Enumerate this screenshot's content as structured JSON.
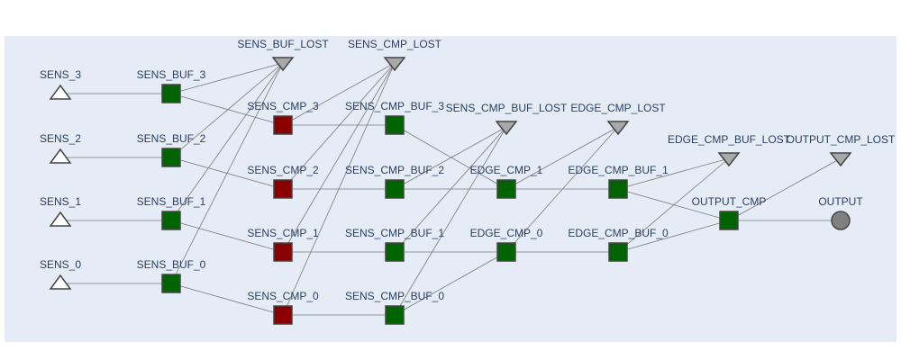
{
  "colors": {
    "plot_bg": "#e5ecf6",
    "edge": "#7a7a7a",
    "source": "#ffffff",
    "buffer": "#006400",
    "compute": "#8b0000",
    "lost": "#a9a9a9",
    "output": "#808080",
    "outline": "#444444",
    "label": "#2a3f5f"
  },
  "nodes": [
    {
      "id": "SENS_3",
      "label": "SENS_3",
      "kind": "source"
    },
    {
      "id": "SENS_2",
      "label": "SENS_2",
      "kind": "source"
    },
    {
      "id": "SENS_1",
      "label": "SENS_1",
      "kind": "source"
    },
    {
      "id": "SENS_0",
      "label": "SENS_0",
      "kind": "source"
    },
    {
      "id": "SENS_BUF_3",
      "label": "SENS_BUF_3",
      "kind": "buffer"
    },
    {
      "id": "SENS_BUF_2",
      "label": "SENS_BUF_2",
      "kind": "buffer"
    },
    {
      "id": "SENS_BUF_1",
      "label": "SENS_BUF_1",
      "kind": "buffer"
    },
    {
      "id": "SENS_BUF_0",
      "label": "SENS_BUF_0",
      "kind": "buffer"
    },
    {
      "id": "SENS_BUF_LOST",
      "label": "SENS_BUF_LOST",
      "kind": "lost"
    },
    {
      "id": "SENS_CMP_LOST",
      "label": "SENS_CMP_LOST",
      "kind": "lost"
    },
    {
      "id": "SENS_CMP_3",
      "label": "SENS_CMP_3",
      "kind": "compute"
    },
    {
      "id": "SENS_CMP_2",
      "label": "SENS_CMP_2",
      "kind": "compute"
    },
    {
      "id": "SENS_CMP_1",
      "label": "SENS_CMP_1",
      "kind": "compute"
    },
    {
      "id": "SENS_CMP_0",
      "label": "SENS_CMP_0",
      "kind": "compute"
    },
    {
      "id": "SENS_CMP_BUF_3",
      "label": "SENS_CMP_BUF_3",
      "kind": "buffer"
    },
    {
      "id": "SENS_CMP_BUF_2",
      "label": "SENS_CMP_BUF_2",
      "kind": "buffer"
    },
    {
      "id": "SENS_CMP_BUF_1",
      "label": "SENS_CMP_BUF_1",
      "kind": "buffer"
    },
    {
      "id": "SENS_CMP_BUF_0",
      "label": "SENS_CMP_BUF_0",
      "kind": "buffer"
    },
    {
      "id": "SENS_CMP_BUF_LOST",
      "label": "SENS_CMP_BUF_LOST",
      "kind": "lost"
    },
    {
      "id": "EDGE_CMP_LOST",
      "label": "EDGE_CMP_LOST",
      "kind": "lost"
    },
    {
      "id": "EDGE_CMP_1",
      "label": "EDGE_CMP_1",
      "kind": "buffer"
    },
    {
      "id": "EDGE_CMP_0",
      "label": "EDGE_CMP_0",
      "kind": "buffer"
    },
    {
      "id": "EDGE_CMP_BUF_1",
      "label": "EDGE_CMP_BUF_1",
      "kind": "buffer"
    },
    {
      "id": "EDGE_CMP_BUF_0",
      "label": "EDGE_CMP_BUF_0",
      "kind": "buffer"
    },
    {
      "id": "EDGE_CMP_BUF_LOST",
      "label": "EDGE_CMP_BUF_LOST",
      "kind": "lost"
    },
    {
      "id": "OUTPUT_CMP",
      "label": "OUTPUT_CMP",
      "kind": "buffer"
    },
    {
      "id": "OUTPUT_CMP_LOST",
      "label": "OUTPUT_CMP_LOST",
      "kind": "lost"
    },
    {
      "id": "OUTPUT",
      "label": "OUTPUT",
      "kind": "output"
    }
  ],
  "edges": [
    [
      "SENS_3",
      "SENS_BUF_3"
    ],
    [
      "SENS_2",
      "SENS_BUF_2"
    ],
    [
      "SENS_1",
      "SENS_BUF_1"
    ],
    [
      "SENS_0",
      "SENS_BUF_0"
    ],
    [
      "SENS_BUF_3",
      "SENS_CMP_3"
    ],
    [
      "SENS_BUF_2",
      "SENS_CMP_2"
    ],
    [
      "SENS_BUF_1",
      "SENS_CMP_1"
    ],
    [
      "SENS_BUF_0",
      "SENS_CMP_0"
    ],
    [
      "SENS_BUF_3",
      "SENS_BUF_LOST"
    ],
    [
      "SENS_BUF_2",
      "SENS_BUF_LOST"
    ],
    [
      "SENS_BUF_1",
      "SENS_BUF_LOST"
    ],
    [
      "SENS_BUF_0",
      "SENS_BUF_LOST"
    ],
    [
      "SENS_CMP_3",
      "SENS_CMP_BUF_3"
    ],
    [
      "SENS_CMP_2",
      "SENS_CMP_BUF_2"
    ],
    [
      "SENS_CMP_1",
      "SENS_CMP_BUF_1"
    ],
    [
      "SENS_CMP_0",
      "SENS_CMP_BUF_0"
    ],
    [
      "SENS_CMP_3",
      "SENS_CMP_LOST"
    ],
    [
      "SENS_CMP_2",
      "SENS_CMP_LOST"
    ],
    [
      "SENS_CMP_1",
      "SENS_CMP_LOST"
    ],
    [
      "SENS_CMP_0",
      "SENS_CMP_LOST"
    ],
    [
      "SENS_CMP_BUF_3",
      "EDGE_CMP_1"
    ],
    [
      "SENS_CMP_BUF_2",
      "EDGE_CMP_1"
    ],
    [
      "SENS_CMP_BUF_1",
      "EDGE_CMP_0"
    ],
    [
      "SENS_CMP_BUF_0",
      "EDGE_CMP_0"
    ],
    [
      "SENS_CMP_BUF_2",
      "SENS_CMP_BUF_LOST"
    ],
    [
      "SENS_CMP_BUF_1",
      "SENS_CMP_BUF_LOST"
    ],
    [
      "SENS_CMP_BUF_0",
      "SENS_CMP_BUF_LOST"
    ],
    [
      "EDGE_CMP_1",
      "EDGE_CMP_BUF_1"
    ],
    [
      "EDGE_CMP_0",
      "EDGE_CMP_BUF_0"
    ],
    [
      "EDGE_CMP_1",
      "EDGE_CMP_LOST"
    ],
    [
      "EDGE_CMP_0",
      "EDGE_CMP_LOST"
    ],
    [
      "EDGE_CMP_BUF_1",
      "OUTPUT_CMP"
    ],
    [
      "EDGE_CMP_BUF_0",
      "OUTPUT_CMP"
    ],
    [
      "EDGE_CMP_BUF_1",
      "EDGE_CMP_BUF_LOST"
    ],
    [
      "EDGE_CMP_BUF_0",
      "EDGE_CMP_BUF_LOST"
    ],
    [
      "OUTPUT_CMP",
      "OUTPUT"
    ],
    [
      "OUTPUT_CMP",
      "OUTPUT_CMP_LOST"
    ]
  ]
}
